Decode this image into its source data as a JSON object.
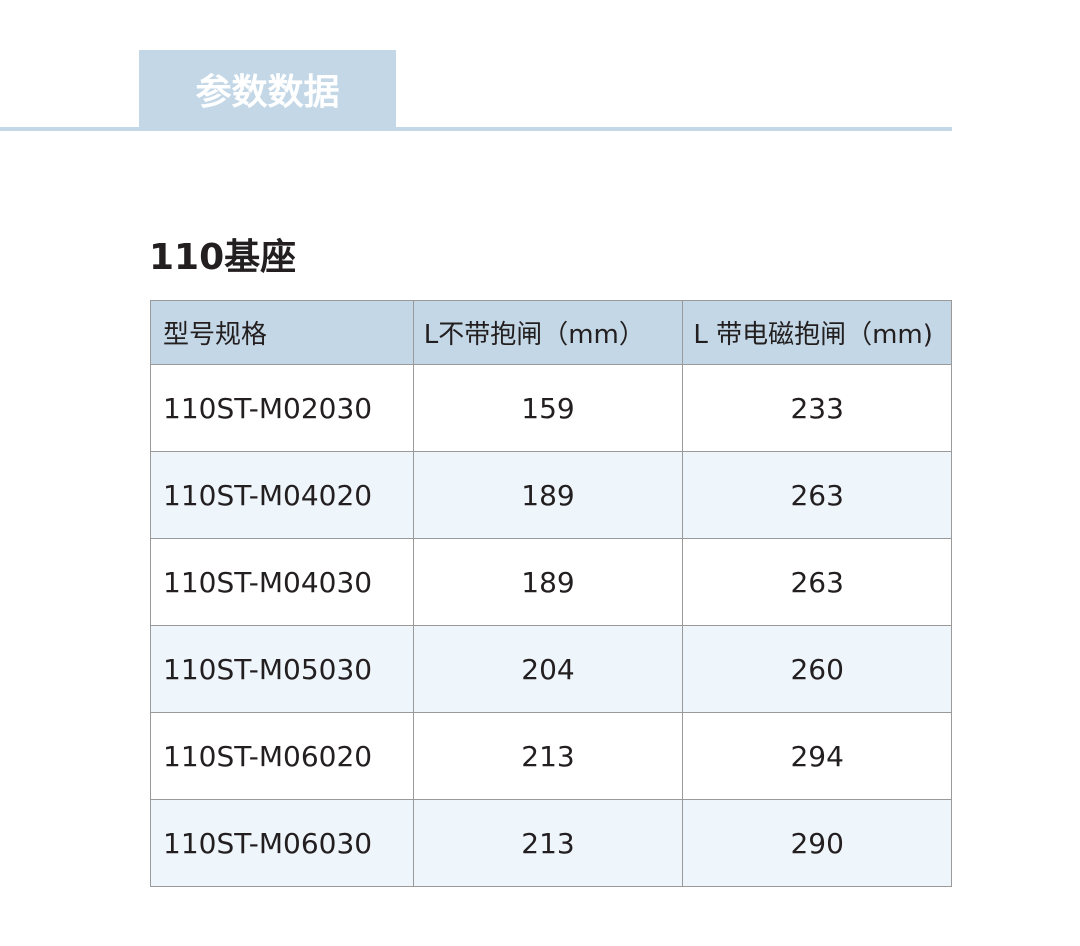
{
  "section_tab": "参数数据",
  "title": "110基座",
  "table": {
    "headers": [
      "型号规格",
      "L不带抱闸（mm）",
      "L 带电磁抱闸（mm)"
    ],
    "rows": [
      [
        "110ST-M02030",
        "159",
        "233"
      ],
      [
        "110ST-M04020",
        "189",
        "263"
      ],
      [
        "110ST-M04030",
        "189",
        "263"
      ],
      [
        "110ST-M05030",
        "204",
        "260"
      ],
      [
        "110ST-M06020",
        "213",
        "294"
      ],
      [
        "110ST-M06030",
        "213",
        "290"
      ]
    ]
  },
  "colors": {
    "header_bg": "#c3d7e6",
    "alt_row_bg": "#eef5fb",
    "border": "#9a9a9a"
  }
}
